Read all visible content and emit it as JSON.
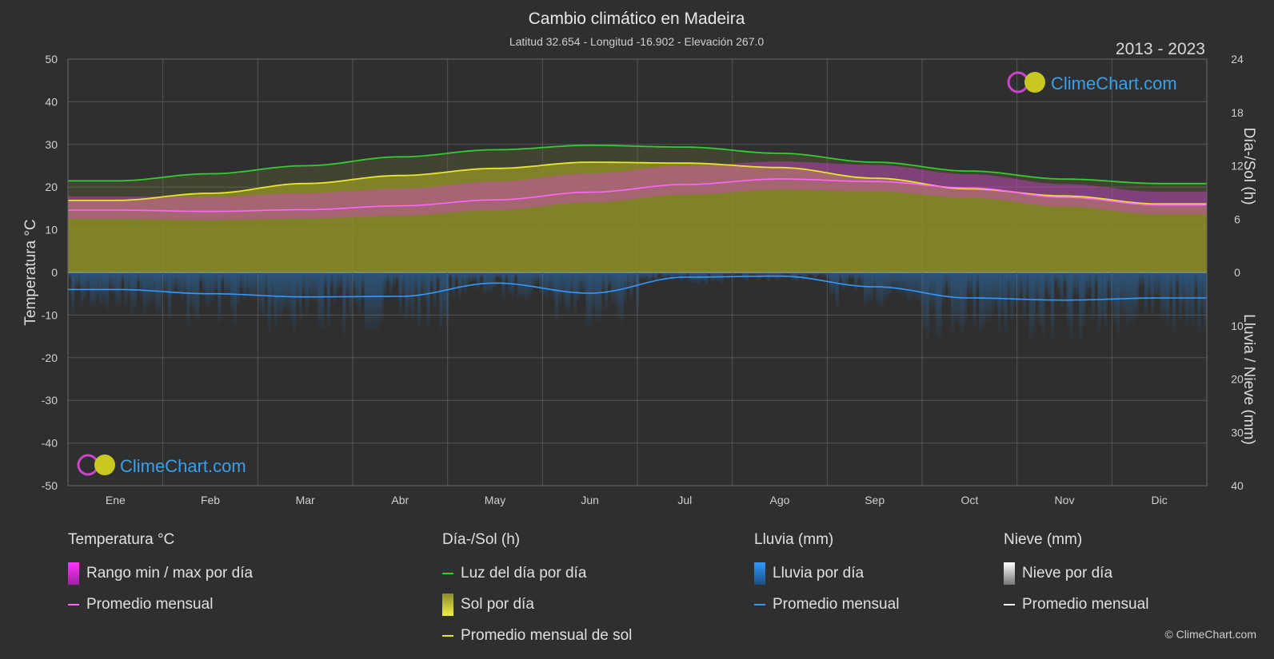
{
  "chart_data": {
    "type": "area",
    "title": "Cambio climático en Madeira",
    "subtitle": "Latitud 32.654 - Longitud -16.902 - Elevación 267.0",
    "period": "2013 - 2023",
    "brand": "ClimeChart.com",
    "copyright": "© ClimeChart.com",
    "categories": [
      "Ene",
      "Feb",
      "Mar",
      "Abr",
      "May",
      "Jun",
      "Jul",
      "Ago",
      "Sep",
      "Oct",
      "Nov",
      "Dic"
    ],
    "y_left": {
      "label": "Temperatura °C",
      "range": [
        -50,
        50
      ],
      "ticks": [
        50,
        40,
        30,
        20,
        10,
        0,
        -10,
        -20,
        -30,
        -40,
        -50
      ]
    },
    "y_right_top": {
      "label": "Día-/Sol (h)",
      "range": [
        0,
        24
      ],
      "ticks": [
        24,
        18,
        12,
        6,
        0
      ]
    },
    "y_right_bottom": {
      "label": "Lluvia / Nieve (mm)",
      "range": [
        0,
        40
      ],
      "ticks": [
        0,
        10,
        20,
        30,
        40
      ]
    },
    "series": [
      {
        "name": "Luz del día por día",
        "axis": "y_right_top",
        "color": "#33cc33",
        "values": [
          10.3,
          11.1,
          12.0,
          13.0,
          13.8,
          14.3,
          14.1,
          13.4,
          12.4,
          11.4,
          10.5,
          10.0
        ]
      },
      {
        "name": "Promedio mensual de sol",
        "axis": "y_right_top",
        "color": "#e6e62e",
        "values": [
          8.1,
          8.9,
          10.0,
          10.9,
          11.7,
          12.4,
          12.3,
          11.8,
          10.6,
          9.4,
          8.6,
          7.7
        ]
      },
      {
        "name": "Promedio mensual",
        "group": "Temperatura °C",
        "axis": "y_left",
        "color": "#ff66ff",
        "values": [
          14.6,
          14.3,
          14.7,
          15.6,
          17.0,
          18.8,
          20.6,
          21.9,
          21.3,
          19.8,
          17.6,
          15.8
        ]
      },
      {
        "name": "Promedio mensual",
        "group": "Lluvia (mm)",
        "axis": "y_right_bottom",
        "color": "#3399ff",
        "values": [
          3.2,
          4.0,
          4.6,
          4.5,
          2.0,
          3.9,
          0.9,
          0.7,
          2.7,
          4.8,
          5.2,
          4.8
        ]
      },
      {
        "name": "Rango min / max por día",
        "axis": "y_left",
        "color": "#e040e0",
        "min": [
          12.5,
          12.2,
          12.6,
          13.3,
          14.6,
          16.4,
          18.2,
          19.4,
          19.0,
          17.5,
          15.4,
          13.6
        ],
        "max": [
          17.8,
          17.7,
          18.6,
          19.6,
          21.3,
          23.2,
          25.0,
          26.0,
          25.2,
          23.0,
          20.7,
          18.9
        ]
      },
      {
        "name": "Sol por día",
        "axis": "y_right_top",
        "color": "#b3b32d",
        "values": [
          8.1,
          8.9,
          10.0,
          10.9,
          11.7,
          12.4,
          12.3,
          11.8,
          10.6,
          9.4,
          8.6,
          7.7
        ]
      }
    ],
    "grid": true
  },
  "legend": {
    "temperature": {
      "heading": "Temperatura °C",
      "items": [
        "Rango min / max por día",
        "Promedio mensual"
      ]
    },
    "daylight": {
      "heading": "Día-/Sol (h)",
      "items": [
        "Luz del día por día",
        "Sol por día",
        "Promedio mensual de sol"
      ]
    },
    "rain": {
      "heading": "Lluvia (mm)",
      "items": [
        "Lluvia por día",
        "Promedio mensual"
      ]
    },
    "snow": {
      "heading": "Nieve (mm)",
      "items": [
        "Nieve por día",
        "Promedio mensual"
      ]
    }
  },
  "colors": {
    "background": "#2f2f2f",
    "grid": "#5a5a5a",
    "daylight": "#33cc33",
    "sunshine_avg": "#e6e62e",
    "sunshine_fill": "#8f8f28",
    "temp_avg": "#ff66ff",
    "temp_range": "#d63fd6",
    "rain": "#3399ff",
    "snow": "#ffffff"
  }
}
